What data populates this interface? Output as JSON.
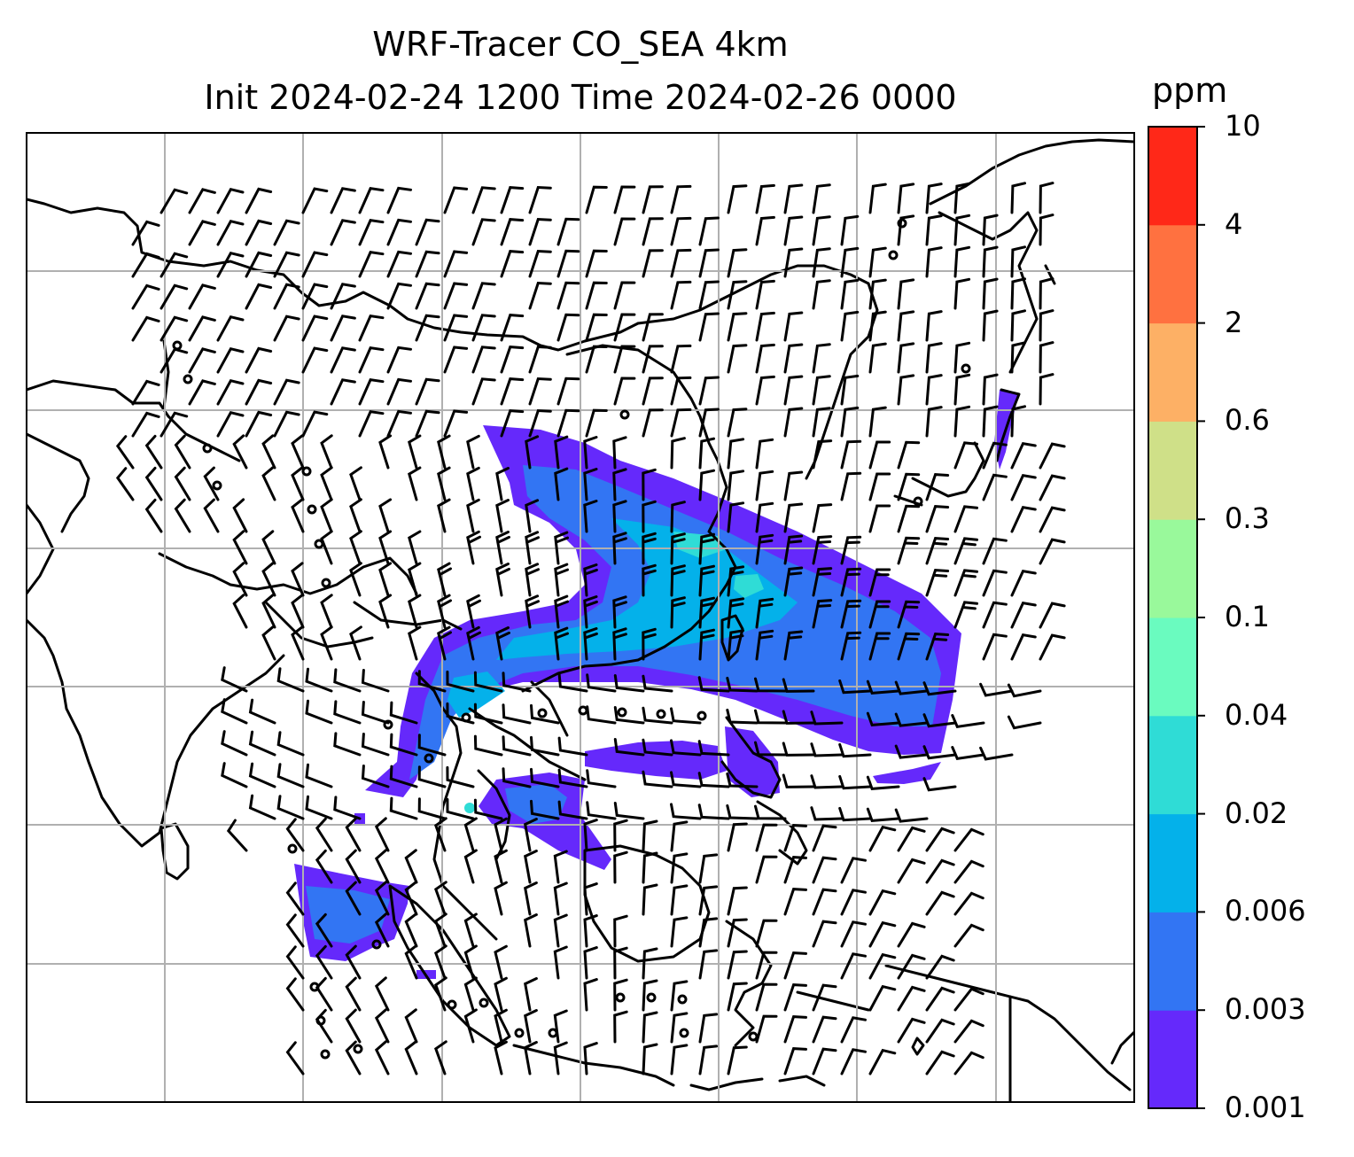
{
  "title": {
    "line1": "WRF-Tracer CO_SEA 4km",
    "line2": "Init 2024-02-24 1200 Time 2024-02-26 0000"
  },
  "colorbar": {
    "unit": "ppm",
    "levels": [
      "0.001",
      "0.003",
      "0.006",
      "0.02",
      "0.04",
      "0.1",
      "0.3",
      "0.6",
      "2",
      "4",
      "10"
    ],
    "colors": [
      "#6529fb",
      "#3275f3",
      "#04b1ea",
      "#2fdcd6",
      "#6afbbf",
      "#99f99b",
      "#cfe088",
      "#fdb065",
      "#ff7140",
      "#ff2818"
    ]
  },
  "map": {
    "grid": "on",
    "overlays": [
      "coastlines",
      "country borders",
      "wind barbs",
      "CO tracer concentration"
    ]
  }
}
